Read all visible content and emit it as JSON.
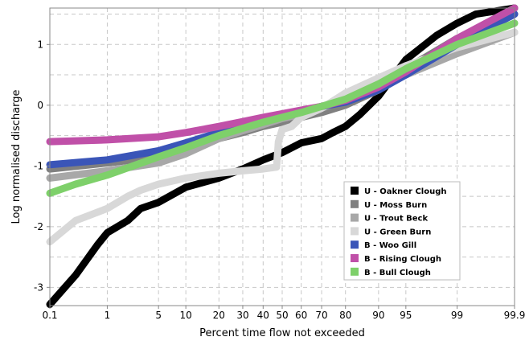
{
  "chart_data": {
    "type": "line",
    "title": "",
    "xlabel": "Percent time flow not exceeded",
    "ylabel": "Log normalised discharge",
    "x_scale": "normal probability",
    "xlim": [
      0.1,
      99.9
    ],
    "ylim": [
      -3.3,
      1.6
    ],
    "x_ticks": [
      0.1,
      1,
      5,
      10,
      20,
      30,
      40,
      50,
      60,
      70,
      80,
      90,
      95,
      99,
      99.9
    ],
    "x_tick_labels": [
      "0.1",
      "1",
      "5",
      "10",
      "20",
      "30",
      "40",
      "50",
      "60",
      "70",
      "80",
      "90",
      "95",
      "99",
      "99.9"
    ],
    "y_ticks": [
      -3,
      -2,
      -1,
      0,
      1
    ],
    "y_tick_labels": [
      "-3",
      "-2",
      "-1",
      "0",
      "1"
    ],
    "grid": true,
    "grid_style": "dashed",
    "legend_position": "bottom-right",
    "series": [
      {
        "name": "U - Oakner Clough",
        "color": "#000000",
        "x": [
          0.1,
          0.3,
          0.7,
          1,
          2,
          3,
          5,
          10,
          20,
          30,
          40,
          50,
          60,
          70,
          75,
          80,
          85,
          90,
          95,
          98,
          99,
          99.5,
          99.9
        ],
        "y": [
          -3.28,
          -2.8,
          -2.3,
          -2.1,
          -1.9,
          -1.7,
          -1.6,
          -1.35,
          -1.2,
          -1.05,
          -0.9,
          -0.78,
          -0.62,
          -0.55,
          -0.45,
          -0.35,
          -0.15,
          0.15,
          0.75,
          1.15,
          1.35,
          1.5,
          1.6
        ]
      },
      {
        "name": "U - Moss Burn",
        "color": "#808080",
        "x": [
          0.1,
          1,
          5,
          10,
          20,
          30,
          40,
          50,
          60,
          70,
          80,
          90,
          95,
          99,
          99.9
        ],
        "y": [
          -1.05,
          -0.95,
          -0.85,
          -0.75,
          -0.55,
          -0.45,
          -0.35,
          -0.28,
          -0.2,
          -0.12,
          0.0,
          0.25,
          0.6,
          1.1,
          1.5
        ]
      },
      {
        "name": "U - Trout Beck",
        "color": "#a8a8a8",
        "x": [
          0.1,
          1,
          5,
          10,
          20,
          30,
          40,
          50,
          60,
          70,
          80,
          90,
          95,
          99,
          99.9
        ],
        "y": [
          -1.2,
          -1.08,
          -0.95,
          -0.8,
          -0.55,
          -0.42,
          -0.32,
          -0.22,
          -0.15,
          -0.05,
          0.1,
          0.3,
          0.5,
          0.85,
          1.2
        ]
      },
      {
        "name": "U - Green Burn",
        "color": "#d8d8d8",
        "x": [
          0.1,
          0.3,
          1,
          2,
          3,
          5,
          10,
          20,
          30,
          40,
          47,
          48,
          50,
          55,
          60,
          70,
          80,
          90,
          95,
          99,
          99.9
        ],
        "y": [
          -2.25,
          -1.9,
          -1.7,
          -1.5,
          -1.4,
          -1.3,
          -1.2,
          -1.12,
          -1.08,
          -1.05,
          -1.02,
          -0.6,
          -0.4,
          -0.35,
          -0.2,
          -0.05,
          0.2,
          0.45,
          0.65,
          0.95,
          1.2
        ]
      },
      {
        "name": "B - Woo Gill",
        "color": "#3a55b8",
        "x": [
          0.1,
          1,
          5,
          10,
          20,
          30,
          40,
          50,
          60,
          70,
          80,
          90,
          95,
          99,
          99.9
        ],
        "y": [
          -0.98,
          -0.9,
          -0.75,
          -0.62,
          -0.45,
          -0.35,
          -0.25,
          -0.18,
          -0.1,
          -0.02,
          0.05,
          0.25,
          0.5,
          1.0,
          1.5
        ]
      },
      {
        "name": "B - Rising Clough",
        "color": "#c050a8",
        "x": [
          0.1,
          1,
          5,
          10,
          20,
          30,
          40,
          50,
          60,
          70,
          80,
          90,
          95,
          99,
          99.9
        ],
        "y": [
          -0.6,
          -0.57,
          -0.52,
          -0.45,
          -0.35,
          -0.27,
          -0.2,
          -0.14,
          -0.08,
          -0.02,
          0.08,
          0.3,
          0.55,
          1.1,
          1.6
        ]
      },
      {
        "name": "B - Bull Clough",
        "color": "#7ed06a",
        "x": [
          0.1,
          0.3,
          1,
          5,
          10,
          20,
          30,
          40,
          50,
          60,
          70,
          80,
          90,
          95,
          99,
          99.9
        ],
        "y": [
          -1.45,
          -1.3,
          -1.15,
          -0.85,
          -0.7,
          -0.5,
          -0.38,
          -0.28,
          -0.2,
          -0.12,
          -0.02,
          0.1,
          0.35,
          0.6,
          1.0,
          1.35
        ]
      }
    ]
  }
}
